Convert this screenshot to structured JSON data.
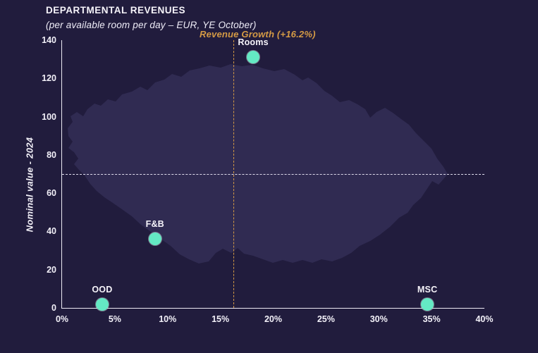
{
  "header": {
    "title": "DEPARTMENTAL REVENUES",
    "subtitle": "(per available room per day – EUR, YE October)",
    "annotation": "Revenue Growth (+16.2%)"
  },
  "chart_data": {
    "type": "scatter",
    "title": "DEPARTMENTAL REVENUES",
    "subtitle": "(per available room per day – EUR, YE October)",
    "xlabel": "",
    "ylabel": "Nominal value - 2024",
    "xlim": [
      0,
      40
    ],
    "ylim": [
      0,
      140
    ],
    "x_ticks": [
      "0%",
      "5%",
      "10%",
      "15%",
      "20%",
      "25%",
      "30%",
      "35%",
      "40%"
    ],
    "y_ticks": [
      0,
      20,
      40,
      60,
      80,
      100,
      120,
      140
    ],
    "grid": false,
    "legend": "none",
    "points": [
      {
        "label": "OOD",
        "x": 3.8,
        "y": 2
      },
      {
        "label": "F&B",
        "x": 8.8,
        "y": 36
      },
      {
        "label": "Rooms",
        "x": 18.1,
        "y": 131
      },
      {
        "label": "MSC",
        "x": 34.6,
        "y": 2
      }
    ],
    "reference_lines": {
      "horizontal": {
        "y": 70,
        "color": "#dddaeb",
        "style": "dashed"
      },
      "vertical": {
        "x": 16.2,
        "color": "#d49a45",
        "style": "dashed",
        "label": "Revenue Growth (+16.2%)"
      }
    },
    "colors": {
      "background": "#211c3d",
      "map_silhouette": "#302b52",
      "point_fill": "#64e9c4",
      "axis": "#eceaf4",
      "annotation": "#d49a45",
      "text": "#f6f4fa"
    }
  }
}
